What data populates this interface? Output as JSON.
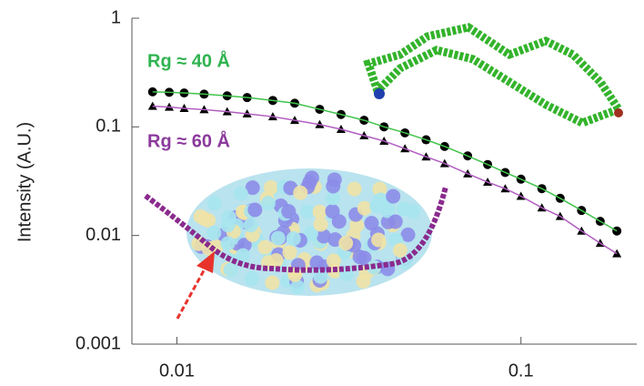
{
  "chart_data": {
    "type": "scatter",
    "y_label": "Intensity (A.U.)",
    "annotations": [
      {
        "text": "Rg ≈ 40 Å",
        "color": "#2fb34f"
      },
      {
        "text": "Rg ≈ 60 Å",
        "color": "#8b3a9c"
      }
    ],
    "xscale": "log",
    "yscale": "log",
    "xlim": [
      0.0074,
      0.217
    ],
    "ylim": [
      0.001,
      1
    ],
    "xticks": [
      0.01,
      0.1
    ],
    "yticks": [
      0.001,
      0.01,
      0.1,
      1
    ],
    "series": [
      {
        "marker": "circle",
        "color": "#000000",
        "line_color": "#3fc24a",
        "x": [
          0.0085,
          0.0095,
          0.0105,
          0.012,
          0.014,
          0.016,
          0.019,
          0.022,
          0.026,
          0.03,
          0.035,
          0.04,
          0.046,
          0.053,
          0.06,
          0.07,
          0.08,
          0.09,
          0.1,
          0.115,
          0.13,
          0.15,
          0.17,
          0.19
        ],
        "values": [
          0.21,
          0.208,
          0.205,
          0.2,
          0.193,
          0.186,
          0.175,
          0.165,
          0.145,
          0.13,
          0.115,
          0.1,
          0.088,
          0.076,
          0.066,
          0.054,
          0.045,
          0.038,
          0.033,
          0.027,
          0.022,
          0.017,
          0.0135,
          0.011
        ]
      },
      {
        "marker": "triangle",
        "color": "#000000",
        "line_color": "#b15cc0",
        "x": [
          0.0085,
          0.0095,
          0.0105,
          0.012,
          0.014,
          0.016,
          0.019,
          0.022,
          0.026,
          0.03,
          0.035,
          0.04,
          0.046,
          0.053,
          0.06,
          0.07,
          0.08,
          0.09,
          0.1,
          0.115,
          0.13,
          0.15,
          0.17,
          0.19
        ],
        "values": [
          0.155,
          0.152,
          0.148,
          0.144,
          0.138,
          0.132,
          0.124,
          0.115,
          0.105,
          0.095,
          0.083,
          0.074,
          0.063,
          0.053,
          0.046,
          0.037,
          0.031,
          0.027,
          0.023,
          0.018,
          0.015,
          0.011,
          0.0085,
          0.0068
        ]
      }
    ]
  }
}
